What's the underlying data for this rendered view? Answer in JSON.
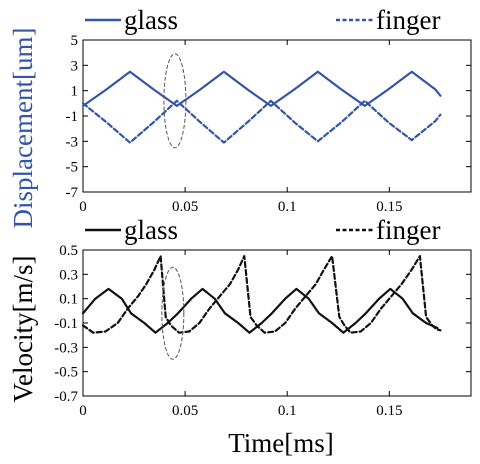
{
  "colors": {
    "displacement": "#3355a8",
    "velocity": "#111111",
    "axis": "#000000",
    "ellipse": "#555555"
  },
  "displacement_panel": {
    "legend": {
      "glass": "glass",
      "finger": "finger"
    },
    "ylabel": "Displacement[um]"
  },
  "velocity_panel": {
    "legend": {
      "glass": "glass",
      "finger": "finger"
    },
    "ylabel": "Velocity[m/s]",
    "xlabel": "Time[ms]"
  },
  "chart_data": [
    {
      "type": "line",
      "title": "",
      "xlabel": "",
      "ylabel": "Displacement[um]",
      "xlim": [
        0,
        0.19
      ],
      "ylim": [
        -7,
        5
      ],
      "xticks": [
        "0",
        "0.05",
        "0.1",
        "0.15"
      ],
      "xtick_values": [
        0,
        0.05,
        0.1,
        0.15
      ],
      "yticks": [
        "5",
        "3",
        "1",
        "-1",
        "-3",
        "-5",
        "-7"
      ],
      "ytick_values": [
        5,
        3,
        1,
        -1,
        -3,
        -5,
        -7
      ],
      "legend_position": "top",
      "annotation": "dashed ellipse near t = 0.045 ms",
      "series": [
        {
          "name": "glass",
          "style": "solid",
          "x": [
            0,
            0.0115,
            0.023,
            0.0345,
            0.046,
            0.0575,
            0.069,
            0.0805,
            0.092,
            0.1035,
            0.115,
            0.1265,
            0.138,
            0.1495,
            0.161,
            0.1725,
            0.175
          ],
          "y": [
            -0.2,
            1.1,
            2.5,
            1.1,
            -0.2,
            1.1,
            2.5,
            1.1,
            -0.2,
            1.1,
            2.5,
            1.1,
            -0.2,
            1.1,
            2.5,
            1.1,
            0.6
          ]
        },
        {
          "name": "finger",
          "style": "dashed",
          "x": [
            0,
            0.0115,
            0.023,
            0.0345,
            0.046,
            0.0575,
            0.069,
            0.0805,
            0.092,
            0.1035,
            0.115,
            0.1265,
            0.138,
            0.1495,
            0.161,
            0.1725,
            0.175
          ],
          "y": [
            0,
            -1.5,
            -3.1,
            -1.5,
            0.2,
            -1.5,
            -3.1,
            -1.5,
            0.2,
            -1.5,
            -3.0,
            -1.5,
            0.2,
            -1.5,
            -2.9,
            -1.4,
            -0.9
          ]
        }
      ]
    },
    {
      "type": "line",
      "title": "",
      "xlabel": "Time[ms]",
      "ylabel": "Velocity[m/s]",
      "xlim": [
        0,
        0.19
      ],
      "ylim": [
        -0.7,
        0.5
      ],
      "xticks": [
        "0",
        "0.05",
        "0.1",
        "0.15"
      ],
      "xtick_values": [
        0,
        0.05,
        0.1,
        0.15
      ],
      "yticks": [
        "0.5",
        "0.3",
        "0.1",
        "-0.1",
        "-0.3",
        "-0.5",
        "-0.7"
      ],
      "ytick_values": [
        0.5,
        0.3,
        0.1,
        -0.1,
        -0.3,
        -0.5,
        -0.7
      ],
      "legend_position": "top",
      "annotation": "dashed ellipse near t = 0.044 ms",
      "series": [
        {
          "name": "glass",
          "style": "solid",
          "x": [
            0,
            0.006,
            0.0125,
            0.019,
            0.0235,
            0.03,
            0.0355,
            0.0415,
            0.0465,
            0.053,
            0.0585,
            0.0645,
            0.0695,
            0.076,
            0.0815,
            0.0875,
            0.0925,
            0.099,
            0.1045,
            0.1105,
            0.1155,
            0.122,
            0.1275,
            0.1335,
            0.1385,
            0.145,
            0.1505,
            0.1565,
            0.1615,
            0.168,
            0.1735
          ],
          "y": [
            -0.02,
            0.1,
            0.18,
            0.1,
            -0.02,
            -0.1,
            -0.18,
            -0.1,
            -0.02,
            0.1,
            0.18,
            0.1,
            -0.02,
            -0.1,
            -0.18,
            -0.1,
            -0.02,
            0.1,
            0.18,
            0.1,
            -0.02,
            -0.1,
            -0.18,
            -0.1,
            -0.02,
            0.1,
            0.18,
            0.1,
            -0.02,
            -0.1,
            -0.14
          ]
        },
        {
          "name": "finger",
          "style": "dashed",
          "x": [
            0,
            0.005,
            0.011,
            0.017,
            0.022,
            0.027,
            0.031,
            0.035,
            0.038,
            0.0405,
            0.043,
            0.047,
            0.052,
            0.057,
            0.062,
            0.067,
            0.072,
            0.076,
            0.079,
            0.082,
            0.085,
            0.089,
            0.094,
            0.099,
            0.104,
            0.109,
            0.114,
            0.118,
            0.122,
            0.1255,
            0.128,
            0.131,
            0.136,
            0.141,
            0.146,
            0.151,
            0.156,
            0.161,
            0.165,
            0.168,
            0.171,
            0.173,
            0.175
          ],
          "y": [
            -0.12,
            -0.18,
            -0.17,
            -0.1,
            0.02,
            0.12,
            0.22,
            0.34,
            0.45,
            -0.05,
            -0.12,
            -0.18,
            -0.17,
            -0.1,
            0.02,
            0.12,
            0.22,
            0.34,
            0.45,
            -0.05,
            -0.12,
            -0.18,
            -0.17,
            -0.1,
            0.02,
            0.12,
            0.22,
            0.34,
            0.45,
            -0.05,
            -0.12,
            -0.18,
            -0.17,
            -0.1,
            0.02,
            0.12,
            0.22,
            0.34,
            0.45,
            -0.05,
            -0.12,
            -0.15,
            -0.16
          ]
        }
      ]
    }
  ]
}
